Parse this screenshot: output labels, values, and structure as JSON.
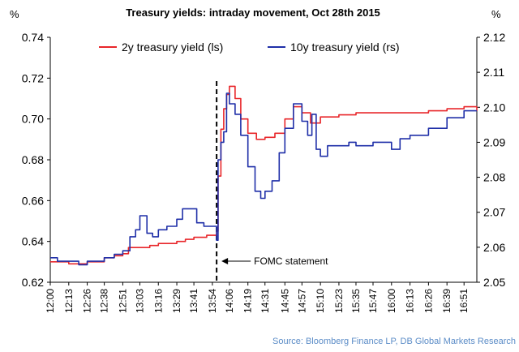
{
  "chart_data": {
    "type": "line",
    "title": "Treasury yields: intraday movement, Oct 28th 2015",
    "y_left_unit": "%",
    "y_right_unit": "%",
    "y_left": {
      "lim": [
        0.62,
        0.74
      ],
      "ticks": [
        "0.62",
        "0.64",
        "0.66",
        "0.68",
        "0.70",
        "0.72",
        "0.74"
      ]
    },
    "y_right": {
      "lim": [
        2.05,
        2.12
      ],
      "ticks": [
        "2.05",
        "2.06",
        "2.07",
        "2.08",
        "2.09",
        "2.10",
        "2.11",
        "2.12"
      ]
    },
    "x_range": [
      "12:00",
      "17:00"
    ],
    "x_ticks": [
      "12:00",
      "12:13",
      "12:26",
      "12:38",
      "12:51",
      "13:03",
      "13:16",
      "13:29",
      "13:41",
      "13:54",
      "14:06",
      "14:19",
      "14:31",
      "14:45",
      "14:57",
      "15:10",
      "15:23",
      "15:35",
      "15:47",
      "16:00",
      "16:13",
      "16:26",
      "16:39",
      "16:51"
    ],
    "grid": false,
    "legend_position": "top",
    "series": [
      {
        "name": "2y treasury yield (ls)",
        "axis": "left",
        "color": "#e8262a",
        "points": [
          [
            "12:00",
            0.63
          ],
          [
            "12:13",
            0.629
          ],
          [
            "12:26",
            0.63
          ],
          [
            "12:38",
            0.632
          ],
          [
            "12:45",
            0.633
          ],
          [
            "12:51",
            0.634
          ],
          [
            "12:55",
            0.637
          ],
          [
            "13:03",
            0.637
          ],
          [
            "13:10",
            0.638
          ],
          [
            "13:16",
            0.639
          ],
          [
            "13:29",
            0.64
          ],
          [
            "13:35",
            0.641
          ],
          [
            "13:41",
            0.642
          ],
          [
            "13:50",
            0.643
          ],
          [
            "13:54",
            0.643
          ],
          [
            "13:57",
            0.645
          ],
          [
            "13:58",
            0.672
          ],
          [
            "14:00",
            0.695
          ],
          [
            "14:02",
            0.705
          ],
          [
            "14:04",
            0.712
          ],
          [
            "14:06",
            0.716
          ],
          [
            "14:10",
            0.71
          ],
          [
            "14:14",
            0.7
          ],
          [
            "14:19",
            0.693
          ],
          [
            "14:25",
            0.69
          ],
          [
            "14:31",
            0.691
          ],
          [
            "14:38",
            0.693
          ],
          [
            "14:45",
            0.7
          ],
          [
            "14:51",
            0.706
          ],
          [
            "14:57",
            0.703
          ],
          [
            "15:03",
            0.698
          ],
          [
            "15:10",
            0.701
          ],
          [
            "15:23",
            0.702
          ],
          [
            "15:35",
            0.703
          ],
          [
            "15:47",
            0.703
          ],
          [
            "16:00",
            0.703
          ],
          [
            "16:13",
            0.703
          ],
          [
            "16:26",
            0.704
          ],
          [
            "16:39",
            0.705
          ],
          [
            "16:51",
            0.706
          ],
          [
            "17:00",
            0.704
          ]
        ]
      },
      {
        "name": "10y treasury yield (rs)",
        "axis": "right",
        "color": "#1f2fa8",
        "points": [
          [
            "12:00",
            2.057
          ],
          [
            "12:05",
            2.056
          ],
          [
            "12:13",
            2.056
          ],
          [
            "12:20",
            2.055
          ],
          [
            "12:26",
            2.056
          ],
          [
            "12:38",
            2.057
          ],
          [
            "12:45",
            2.058
          ],
          [
            "12:51",
            2.059
          ],
          [
            "12:56",
            2.063
          ],
          [
            "13:00",
            2.065
          ],
          [
            "13:03",
            2.069
          ],
          [
            "13:08",
            2.064
          ],
          [
            "13:12",
            2.063
          ],
          [
            "13:16",
            2.065
          ],
          [
            "13:22",
            2.066
          ],
          [
            "13:29",
            2.068
          ],
          [
            "13:33",
            2.071
          ],
          [
            "13:38",
            2.071
          ],
          [
            "13:43",
            2.067
          ],
          [
            "13:48",
            2.066
          ],
          [
            "13:54",
            2.066
          ],
          [
            "13:57",
            2.062
          ],
          [
            "13:58",
            2.085
          ],
          [
            "14:00",
            2.09
          ],
          [
            "14:02",
            2.093
          ],
          [
            "14:04",
            2.104
          ],
          [
            "14:06",
            2.101
          ],
          [
            "14:10",
            2.098
          ],
          [
            "14:14",
            2.092
          ],
          [
            "14:19",
            2.083
          ],
          [
            "14:24",
            2.076
          ],
          [
            "14:28",
            2.074
          ],
          [
            "14:31",
            2.076
          ],
          [
            "14:36",
            2.079
          ],
          [
            "14:41",
            2.087
          ],
          [
            "14:45",
            2.094
          ],
          [
            "14:51",
            2.101
          ],
          [
            "14:57",
            2.096
          ],
          [
            "15:01",
            2.092
          ],
          [
            "15:04",
            2.098
          ],
          [
            "15:07",
            2.088
          ],
          [
            "15:10",
            2.086
          ],
          [
            "15:15",
            2.089
          ],
          [
            "15:23",
            2.089
          ],
          [
            "15:30",
            2.09
          ],
          [
            "15:35",
            2.089
          ],
          [
            "15:47",
            2.09
          ],
          [
            "15:55",
            2.09
          ],
          [
            "16:00",
            2.088
          ],
          [
            "16:06",
            2.091
          ],
          [
            "16:13",
            2.092
          ],
          [
            "16:26",
            2.094
          ],
          [
            "16:39",
            2.097
          ],
          [
            "16:51",
            2.099
          ],
          [
            "17:00",
            2.099
          ]
        ]
      }
    ],
    "annotations": [
      {
        "text": "FOMC statement",
        "x": "13:57"
      }
    ],
    "source": "Source: Bloomberg Finance LP, DB Global Markets Research"
  }
}
